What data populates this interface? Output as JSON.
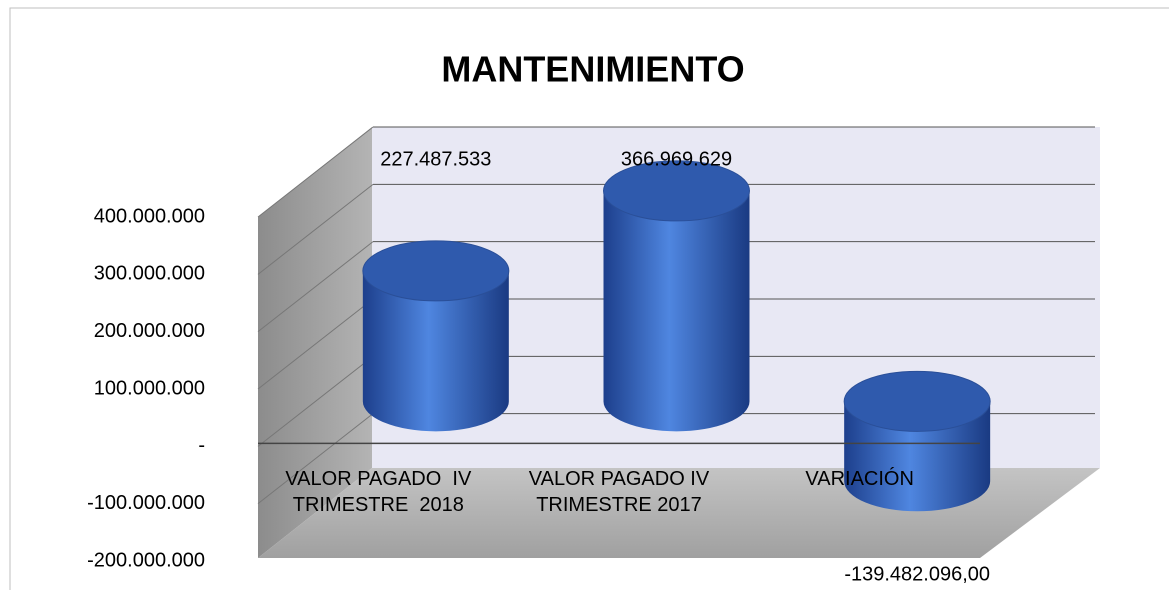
{
  "chart_data": {
    "type": "bar3d-cylinder",
    "title": "MANTENIMIENTO",
    "categories": [
      "VALOR PAGADO  IV TRIMESTRE  2018",
      "VALOR PAGADO IV TRIMESTRE 2017",
      "VARIACIÓN"
    ],
    "values": [
      227487533,
      366969629,
      -139482096
    ],
    "value_labels": [
      "227.487.533",
      "366.969.629",
      "-139.482.096,00"
    ],
    "color": "#3a6fd0",
    "ylim": [
      -200000000,
      400000000
    ],
    "yticks": [
      {
        "value": -200000000,
        "label": "-200.000.000"
      },
      {
        "value": -100000000,
        "label": "-100.000.000"
      },
      {
        "value": 0,
        "label": "-"
      },
      {
        "value": 100000000,
        "label": "100.000.000"
      },
      {
        "value": 200000000,
        "label": "200.000.000"
      },
      {
        "value": 300000000,
        "label": "300.000.000"
      },
      {
        "value": 400000000,
        "label": "400.000.000"
      }
    ],
    "grid": true
  }
}
